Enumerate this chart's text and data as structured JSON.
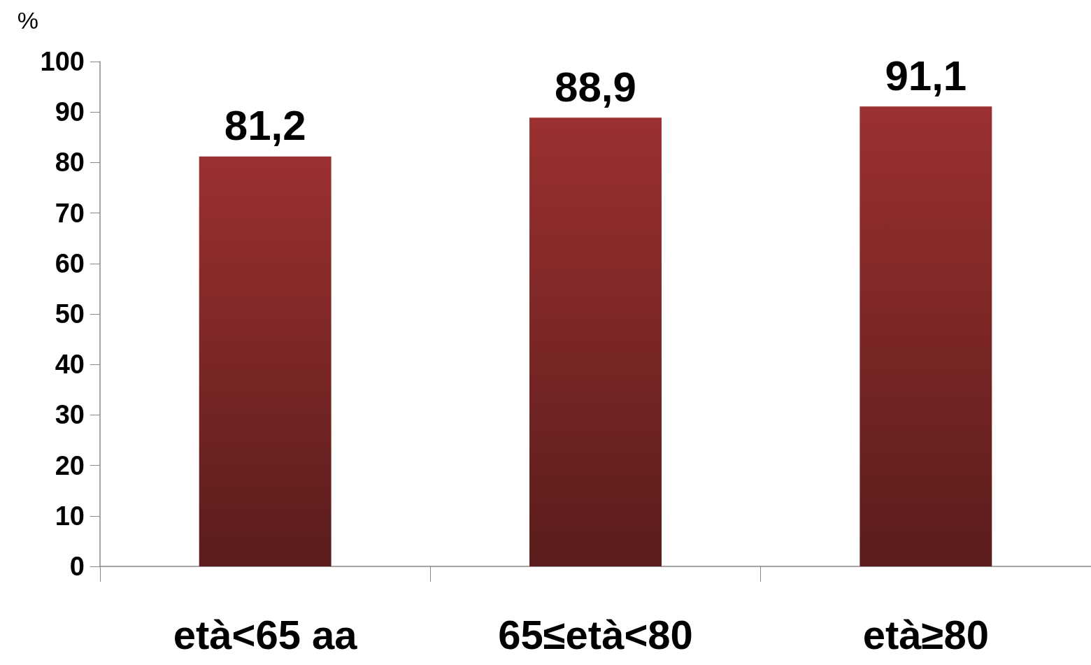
{
  "chart_data": {
    "type": "bar",
    "ylabel": "%",
    "categories": [
      "età<65 aa",
      "65≤età<80",
      "età≥80"
    ],
    "values": [
      81.2,
      88.9,
      91.1
    ],
    "value_labels": [
      "81,2",
      "88,9",
      "91,1"
    ],
    "color": "#9b3030",
    "ylim": [
      0,
      100
    ],
    "yticks": [
      0,
      10,
      20,
      30,
      40,
      50,
      60,
      70,
      80,
      90,
      100
    ]
  }
}
